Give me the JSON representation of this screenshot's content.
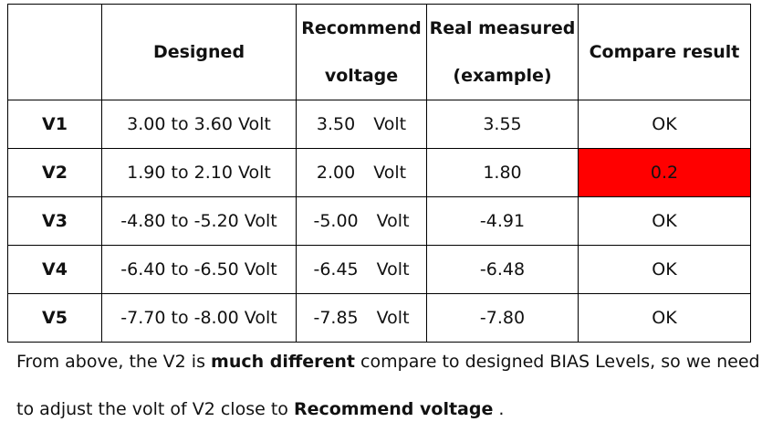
{
  "headers": {
    "blank": "",
    "designed": "Designed",
    "recommend_line1": "Recommend",
    "recommend_line2": "voltage",
    "measured_line1": "Real measured",
    "measured_line2": "(example)",
    "compare": "Compare result"
  },
  "rows": [
    {
      "label": "V1",
      "designed": "3.00 to 3.60 Volt",
      "recommend_value": "3.50",
      "recommend_unit": "Volt",
      "measured": "3.55",
      "result": "OK"
    },
    {
      "label": "V2",
      "designed": "1.90 to 2.10 Volt",
      "recommend_value": "2.00",
      "recommend_unit": "Volt",
      "measured": "1.80",
      "result": "0.2"
    },
    {
      "label": "V3",
      "designed": "-4.80 to -5.20 Volt",
      "recommend_value": "-5.00",
      "recommend_unit": "Volt",
      "measured": "-4.91",
      "result": "OK"
    },
    {
      "label": "V4",
      "designed": "-6.40 to -6.50 Volt",
      "recommend_value": "-6.45",
      "recommend_unit": "Volt",
      "measured": "-6.48",
      "result": "OK"
    },
    {
      "label": "V5",
      "designed": "-7.70 to -8.00 Volt",
      "recommend_value": "-7.85",
      "recommend_unit": "Volt",
      "measured": "-7.80",
      "result": "OK"
    }
  ],
  "highlight_color": "#ff0000",
  "note": {
    "line1_a": "From above, the V2 is ",
    "line1_bold": "much different",
    "line1_b": " compare to designed BIAS Levels, so we need",
    "line2_a": "to adjust the volt of V2 close to ",
    "line2_bold": "Recommend voltage",
    "line2_b": " ."
  }
}
